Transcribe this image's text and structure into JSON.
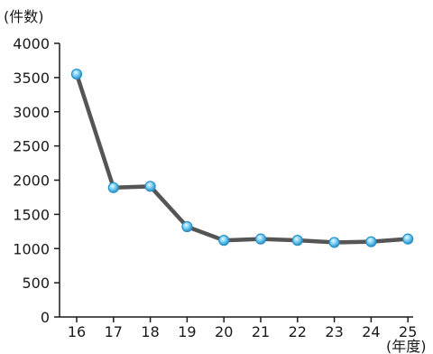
{
  "chart_data": {
    "type": "line",
    "title": "",
    "ylabel": "(件数)",
    "xlabel": "(年度)",
    "categories": [
      "16",
      "17",
      "18",
      "19",
      "20",
      "21",
      "22",
      "23",
      "24",
      "25"
    ],
    "series": [
      {
        "values": [
          3550,
          1890,
          1910,
          1320,
          1120,
          1140,
          1120,
          1090,
          1100,
          1140
        ]
      }
    ],
    "yticks": [
      "0",
      "500",
      "1000",
      "1500",
      "2000",
      "2500",
      "3000",
      "3500",
      "4000"
    ],
    "ylim": [
      0,
      4000
    ],
    "grid": false,
    "colors": {
      "line": "#555555",
      "marker_fill": "#5cc4f0",
      "marker_stroke": "#2a8fc7",
      "axis": "#1a1a1a"
    }
  }
}
